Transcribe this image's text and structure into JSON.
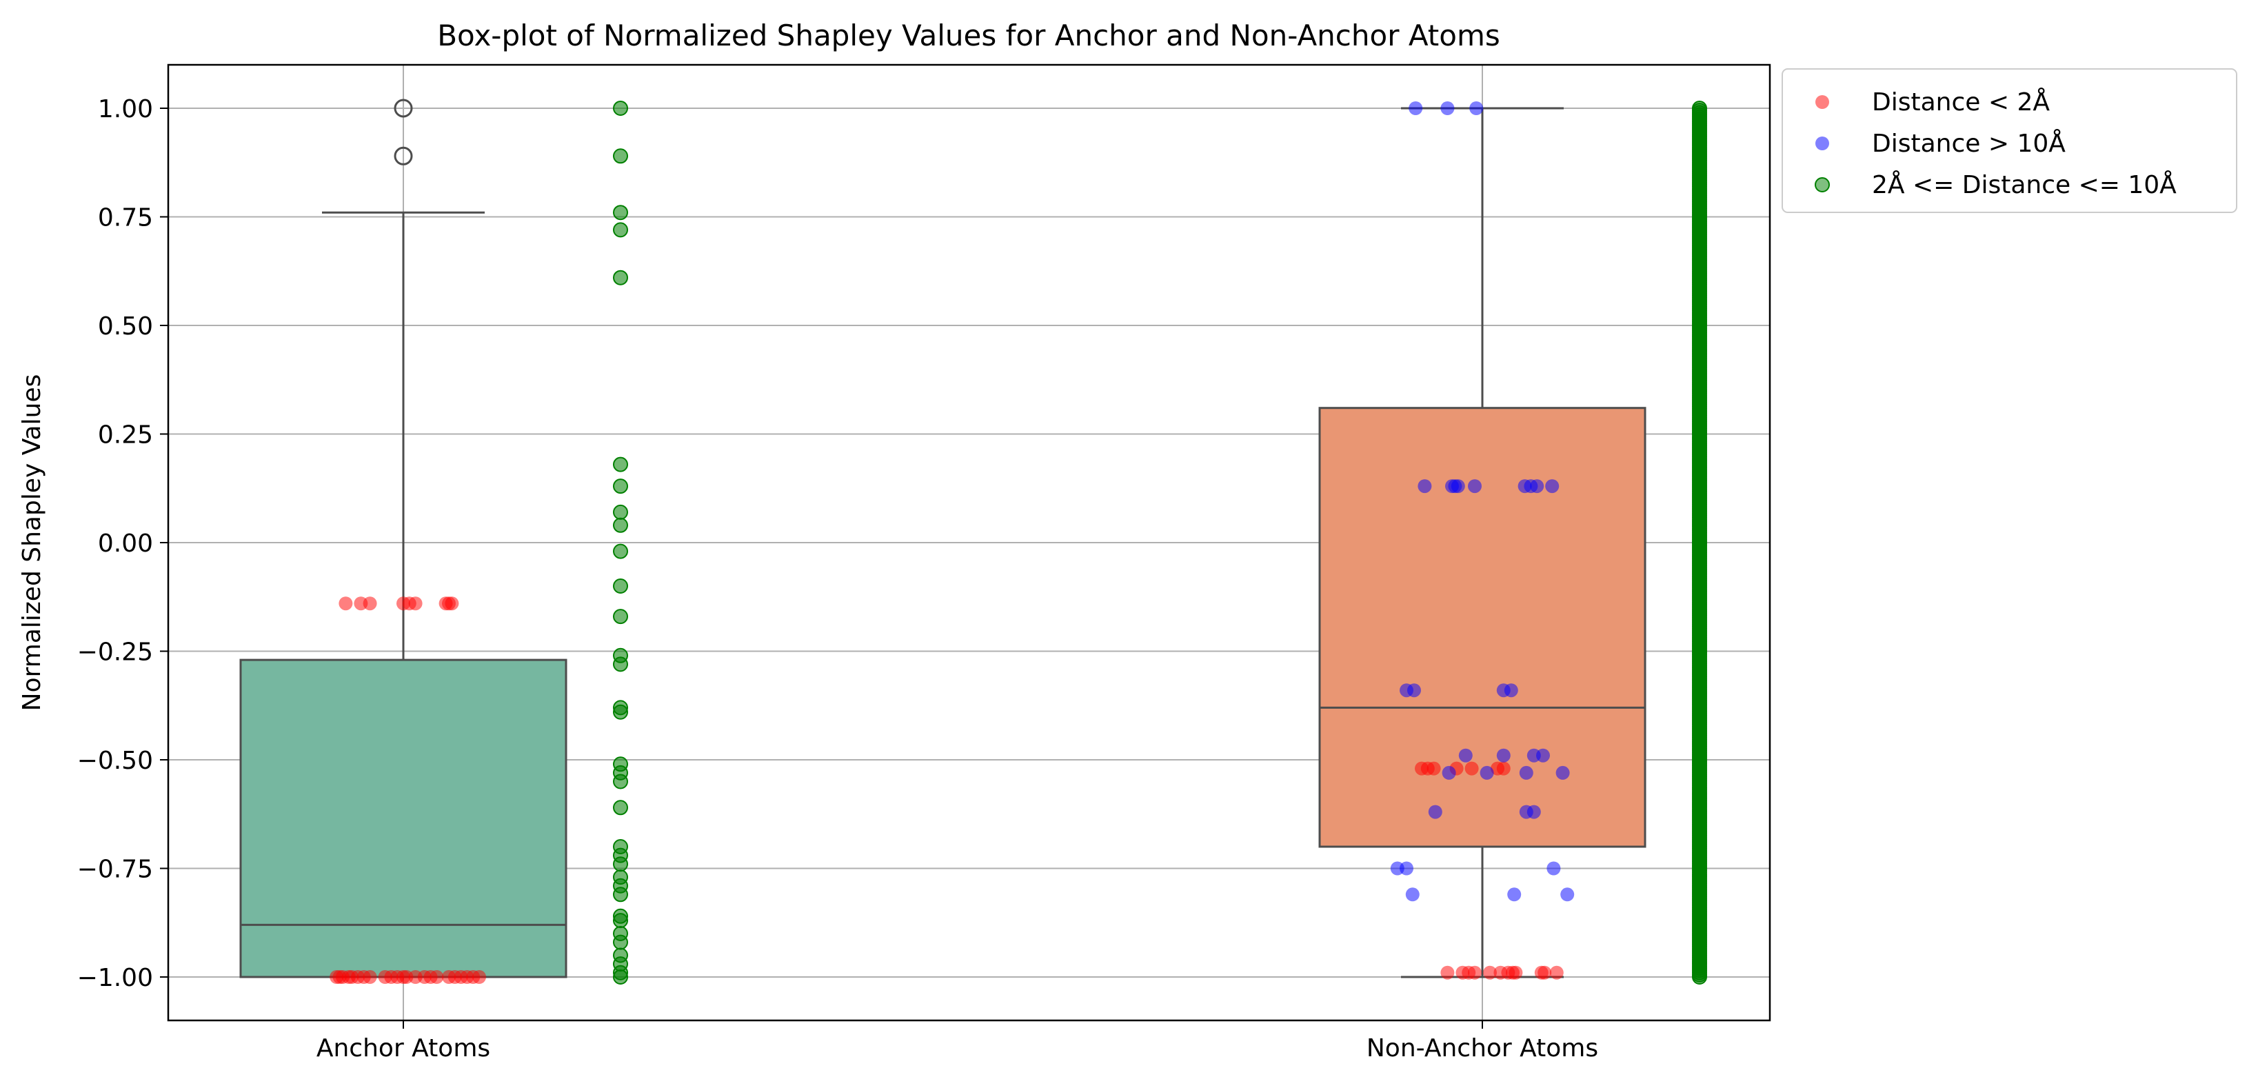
{
  "chart_data": {
    "type": "box",
    "title": "Box-plot of Normalized Shapley Values for Anchor and Non-Anchor Atoms",
    "xlabel": "",
    "ylabel": "Normalized Shapley Values",
    "categories": [
      "Anchor Atoms",
      "Non-Anchor Atoms"
    ],
    "ylim": [
      -1.1,
      1.1
    ],
    "yticks": [
      "1.00",
      "0.75",
      "0.50",
      "0.25",
      "0.00",
      "−0.25",
      "−0.50",
      "−0.75",
      "−1.00"
    ],
    "ytick_values": [
      1.0,
      0.75,
      0.5,
      0.25,
      0.0,
      -0.25,
      -0.5,
      -0.75,
      -1.0
    ],
    "grid": true,
    "legend_position": "outside top-right",
    "boxes": [
      {
        "category": "Anchor Atoms",
        "q1": -1.0,
        "median": -0.88,
        "q3": -0.27,
        "whisker_low": -1.0,
        "whisker_high": 0.76,
        "outliers": [
          1.0,
          0.89
        ],
        "color": "#76b7a0"
      },
      {
        "category": "Non-Anchor Atoms",
        "q1": -0.7,
        "median": -0.38,
        "q3": 0.31,
        "whisker_low": -1.0,
        "whisker_high": 1.0,
        "outliers": [],
        "color": "#e99673"
      }
    ],
    "series": [
      {
        "name": "Distance < 2Å",
        "color": "#ff0000",
        "points": [
          {
            "cat": 0,
            "off": -0.38,
            "y": -0.14
          },
          {
            "cat": 0,
            "off": -0.28,
            "y": -0.14
          },
          {
            "cat": 0,
            "off": -0.22,
            "y": -0.14
          },
          {
            "cat": 0,
            "off": 0.0,
            "y": -0.14
          },
          {
            "cat": 0,
            "off": 0.04,
            "y": -0.14
          },
          {
            "cat": 0,
            "off": 0.08,
            "y": -0.14
          },
          {
            "cat": 0,
            "off": 0.28,
            "y": -0.14
          },
          {
            "cat": 0,
            "off": 0.3,
            "y": -0.14
          },
          {
            "cat": 0,
            "off": 0.32,
            "y": -0.14
          },
          {
            "cat": 0,
            "off": -0.44,
            "y": -1.0
          },
          {
            "cat": 0,
            "off": -0.42,
            "y": -1.0
          },
          {
            "cat": 0,
            "off": -0.4,
            "y": -1.0
          },
          {
            "cat": 0,
            "off": -0.36,
            "y": -1.0
          },
          {
            "cat": 0,
            "off": -0.34,
            "y": -1.0
          },
          {
            "cat": 0,
            "off": -0.3,
            "y": -1.0
          },
          {
            "cat": 0,
            "off": -0.26,
            "y": -1.0
          },
          {
            "cat": 0,
            "off": -0.22,
            "y": -1.0
          },
          {
            "cat": 0,
            "off": -0.12,
            "y": -1.0
          },
          {
            "cat": 0,
            "off": -0.08,
            "y": -1.0
          },
          {
            "cat": 0,
            "off": -0.04,
            "y": -1.0
          },
          {
            "cat": 0,
            "off": 0.0,
            "y": -1.0
          },
          {
            "cat": 0,
            "off": 0.02,
            "y": -1.0
          },
          {
            "cat": 0,
            "off": 0.08,
            "y": -1.0
          },
          {
            "cat": 0,
            "off": 0.14,
            "y": -1.0
          },
          {
            "cat": 0,
            "off": 0.18,
            "y": -1.0
          },
          {
            "cat": 0,
            "off": 0.22,
            "y": -1.0
          },
          {
            "cat": 0,
            "off": 0.3,
            "y": -1.0
          },
          {
            "cat": 0,
            "off": 0.34,
            "y": -1.0
          },
          {
            "cat": 0,
            "off": 0.38,
            "y": -1.0
          },
          {
            "cat": 0,
            "off": 0.42,
            "y": -1.0
          },
          {
            "cat": 0,
            "off": 0.46,
            "y": -1.0
          },
          {
            "cat": 0,
            "off": 0.5,
            "y": -1.0
          },
          {
            "cat": 1,
            "off": -0.4,
            "y": -0.52
          },
          {
            "cat": 1,
            "off": -0.36,
            "y": -0.52
          },
          {
            "cat": 1,
            "off": -0.32,
            "y": -0.52
          },
          {
            "cat": 1,
            "off": -0.17,
            "y": -0.52
          },
          {
            "cat": 1,
            "off": -0.07,
            "y": -0.52
          },
          {
            "cat": 1,
            "off": 0.1,
            "y": -0.52
          },
          {
            "cat": 1,
            "off": 0.14,
            "y": -0.52
          },
          {
            "cat": 1,
            "off": -0.23,
            "y": -0.99
          },
          {
            "cat": 1,
            "off": -0.13,
            "y": -0.99
          },
          {
            "cat": 1,
            "off": -0.09,
            "y": -0.99
          },
          {
            "cat": 1,
            "off": -0.05,
            "y": -0.99
          },
          {
            "cat": 1,
            "off": 0.05,
            "y": -0.99
          },
          {
            "cat": 1,
            "off": 0.12,
            "y": -0.99
          },
          {
            "cat": 1,
            "off": 0.17,
            "y": -0.99
          },
          {
            "cat": 1,
            "off": 0.2,
            "y": -0.99
          },
          {
            "cat": 1,
            "off": 0.22,
            "y": -0.99
          },
          {
            "cat": 1,
            "off": 0.39,
            "y": -0.99
          },
          {
            "cat": 1,
            "off": 0.41,
            "y": -0.99
          },
          {
            "cat": 1,
            "off": 0.49,
            "y": -0.99
          }
        ]
      },
      {
        "name": "Distance > 10Å",
        "color": "#0000ff",
        "points": [
          {
            "cat": 1,
            "off": -0.44,
            "y": 1.0
          },
          {
            "cat": 1,
            "off": -0.23,
            "y": 1.0
          },
          {
            "cat": 1,
            "off": -0.04,
            "y": 1.0
          },
          {
            "cat": 1,
            "off": -0.38,
            "y": 0.13
          },
          {
            "cat": 1,
            "off": -0.2,
            "y": 0.13
          },
          {
            "cat": 1,
            "off": -0.18,
            "y": 0.13
          },
          {
            "cat": 1,
            "off": -0.16,
            "y": 0.13
          },
          {
            "cat": 1,
            "off": -0.05,
            "y": 0.13
          },
          {
            "cat": 1,
            "off": 0.28,
            "y": 0.13
          },
          {
            "cat": 1,
            "off": 0.32,
            "y": 0.13
          },
          {
            "cat": 1,
            "off": 0.36,
            "y": 0.13
          },
          {
            "cat": 1,
            "off": 0.46,
            "y": 0.13
          },
          {
            "cat": 1,
            "off": -0.5,
            "y": -0.34
          },
          {
            "cat": 1,
            "off": -0.45,
            "y": -0.34
          },
          {
            "cat": 1,
            "off": 0.14,
            "y": -0.34
          },
          {
            "cat": 1,
            "off": 0.19,
            "y": -0.34
          },
          {
            "cat": 1,
            "off": -0.11,
            "y": -0.49
          },
          {
            "cat": 1,
            "off": 0.14,
            "y": -0.49
          },
          {
            "cat": 1,
            "off": 0.34,
            "y": -0.49
          },
          {
            "cat": 1,
            "off": 0.4,
            "y": -0.49
          },
          {
            "cat": 1,
            "off": -0.22,
            "y": -0.53
          },
          {
            "cat": 1,
            "off": 0.03,
            "y": -0.53
          },
          {
            "cat": 1,
            "off": 0.29,
            "y": -0.53
          },
          {
            "cat": 1,
            "off": 0.53,
            "y": -0.53
          },
          {
            "cat": 1,
            "off": -0.31,
            "y": -0.62
          },
          {
            "cat": 1,
            "off": 0.29,
            "y": -0.62
          },
          {
            "cat": 1,
            "off": 0.34,
            "y": -0.62
          },
          {
            "cat": 1,
            "off": -0.56,
            "y": -0.75
          },
          {
            "cat": 1,
            "off": -0.5,
            "y": -0.75
          },
          {
            "cat": 1,
            "off": 0.47,
            "y": -0.75
          },
          {
            "cat": 1,
            "off": -0.46,
            "y": -0.81
          },
          {
            "cat": 1,
            "off": 0.21,
            "y": -0.81
          },
          {
            "cat": 1,
            "off": 0.56,
            "y": -0.81
          }
        ]
      },
      {
        "name": "2Å <= Distance <= 10Å",
        "color": "#008000",
        "strip": [
          {
            "cat": 0,
            "values": [
              1.0,
              0.89,
              0.76,
              0.72,
              0.61,
              0.18,
              0.13,
              0.07,
              0.04,
              -0.02,
              -0.1,
              -0.17,
              -0.26,
              -0.28,
              -0.38,
              -0.39,
              -0.51,
              -0.53,
              -0.55,
              -0.61,
              -0.7,
              -0.72,
              -0.74,
              -0.77,
              -0.79,
              -0.81,
              -0.86,
              -0.87,
              -0.9,
              -0.92,
              -0.95,
              -0.97,
              -0.99,
              -1.0
            ]
          },
          {
            "cat": 1,
            "range": [
              -1.0,
              1.0
            ],
            "count": 400
          }
        ]
      }
    ]
  }
}
